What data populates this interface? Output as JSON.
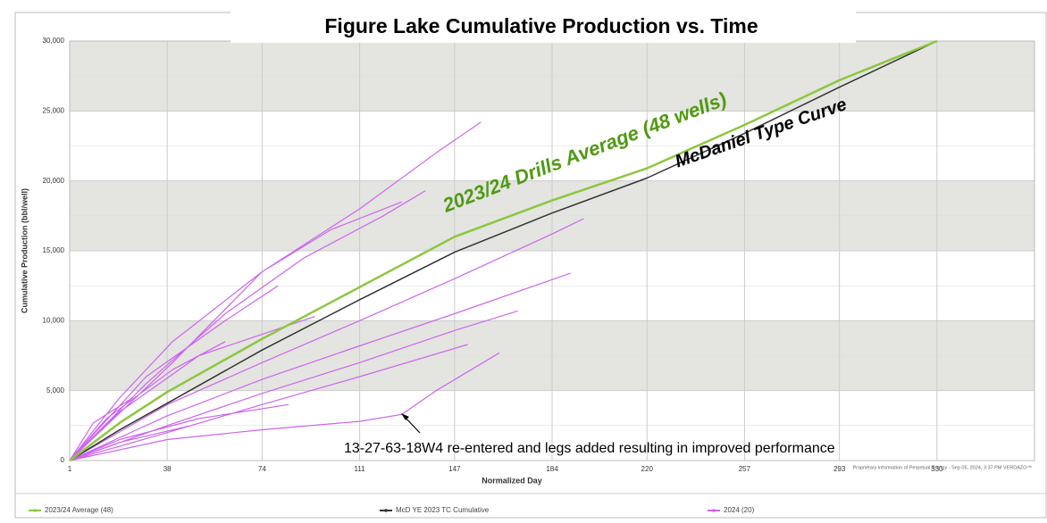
{
  "chart_data": {
    "type": "line",
    "title": "Figure Lake Cumulative Production vs. Time",
    "xlabel": "Normalized Day",
    "ylabel": "Cumulative Production (bbl/well)",
    "xlim": [
      1,
      367
    ],
    "ylim": [
      0,
      30000
    ],
    "xticks": [
      1,
      38,
      74,
      111,
      147,
      184,
      220,
      257,
      293,
      330
    ],
    "yticks": [
      0,
      {
        "value": 5000,
        "label": "5,000"
      },
      {
        "value": 10000,
        "label": "10,000"
      },
      {
        "value": 15000,
        "label": "15,000"
      },
      {
        "value": 20000,
        "label": "20,000"
      },
      {
        "value": 25000,
        "label": "25,000"
      },
      {
        "value": 30000,
        "label": "30,000"
      }
    ],
    "grid": true,
    "legend": "bottom",
    "annotations": [
      "2023/24 Drills Average (48 wells)",
      "McDaniel Type Curve",
      "13-27-63-18W4 re-entered and legs added resulting in improved performance"
    ],
    "footnote": "Proprietary information of Perpetual Energy - Sep 05, 2024, 3:37 PM  VERDAZO™",
    "series": [
      {
        "name": "2023/24 Average (48)",
        "color": "#8dc63f",
        "width": 2.5,
        "x": [
          1,
          20,
          38,
          74,
          111,
          147,
          184,
          220,
          257,
          293,
          330
        ],
        "values": [
          0,
          2700,
          4900,
          8700,
          12400,
          16000,
          18600,
          20900,
          24000,
          27200,
          30000
        ]
      },
      {
        "name": "McD YE 2023 TC Cumulative",
        "color": "#333333",
        "width": 1.5,
        "x": [
          1,
          20,
          38,
          74,
          111,
          147,
          184,
          220,
          257,
          293,
          330
        ],
        "values": [
          0,
          2200,
          4100,
          7900,
          11500,
          14900,
          17700,
          20200,
          23400,
          26700,
          30000
        ]
      },
      {
        "name": "2024 (20)",
        "color": "#cc66ee",
        "width": 1.2,
        "x": [
          1,
          20,
          40,
          74,
          111,
          140,
          157,
          null,
          1,
          30,
          60,
          90,
          120,
          136,
          null,
          1,
          40,
          74,
          100,
          127,
          null,
          1,
          38,
          74,
          111,
          147,
          184,
          196,
          null,
          1,
          38,
          74,
          111,
          147,
          191,
          null,
          1,
          38,
          74,
          111,
          147,
          171,
          null,
          1,
          38,
          74,
          111,
          152,
          null,
          1,
          38,
          74,
          111,
          127,
          140,
          164,
          null,
          1,
          20,
          50,
          84,
          null,
          1,
          20,
          47,
          null,
          1,
          20,
          50,
          94,
          null,
          1,
          15,
          40,
          60,
          null,
          1,
          10,
          25,
          null,
          1,
          30,
          60,
          80
        ],
        "values": [
          0,
          4500,
          8500,
          13500,
          18000,
          22000,
          24200,
          null,
          0,
          5500,
          10500,
          14500,
          17500,
          19300,
          null,
          0,
          7000,
          13500,
          16500,
          18500,
          null,
          0,
          4000,
          7000,
          10000,
          13000,
          16200,
          17300,
          null,
          0,
          3200,
          5800,
          8200,
          10500,
          13400,
          null,
          0,
          2500,
          4800,
          7000,
          9300,
          10700,
          null,
          0,
          2000,
          4000,
          6000,
          8300,
          null,
          0,
          1500,
          2200,
          2800,
          3300,
          5000,
          7700,
          null,
          0,
          1500,
          3000,
          4000,
          null,
          0,
          1300,
          2500,
          null,
          0,
          3500,
          7500,
          10300,
          null,
          0,
          3000,
          6500,
          8500,
          null,
          0,
          2700,
          4500,
          null,
          0,
          6000,
          10000,
          12500
        ]
      }
    ]
  }
}
